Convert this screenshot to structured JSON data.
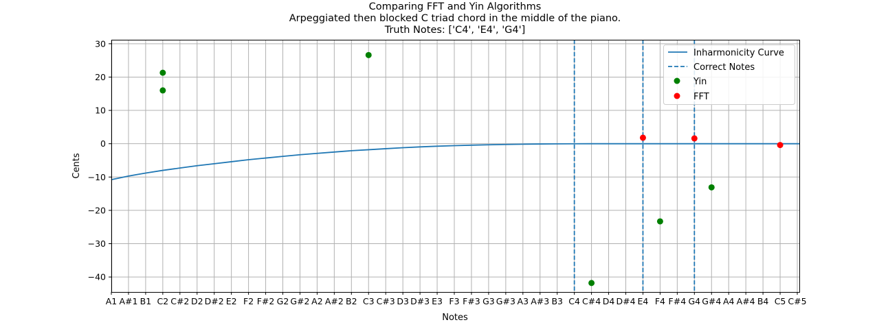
{
  "chart_data": {
    "type": "scatter",
    "title_lines": [
      "Comparing FFT and Yin Algorithms",
      "Arpeggiated then blocked C triad chord in the middle of the piano.",
      "Truth Notes: ['C4', 'E4', 'G4']"
    ],
    "xlabel": "Notes",
    "ylabel": "Cents",
    "x_ticks": [
      "A1",
      "A#1",
      "B1",
      "C2",
      "C#2",
      "D2",
      "D#2",
      "E2",
      "F2",
      "F#2",
      "G2",
      "G#2",
      "A2",
      "A#2",
      "B2",
      "C3",
      "C#3",
      "D3",
      "D#3",
      "E3",
      "F3",
      "F#3",
      "G3",
      "G#3",
      "A3",
      "A#3",
      "B3",
      "C4",
      "C#4",
      "D4",
      "D#4",
      "E4",
      "F4",
      "F#4",
      "G4",
      "G#4",
      "A4",
      "A#4",
      "B4",
      "C5",
      "C#5"
    ],
    "xlim": [
      "A1",
      "C#5"
    ],
    "ylim": [
      -44.5,
      31.2
    ],
    "y_ticks": [
      30,
      20,
      10,
      0,
      -10,
      -20,
      -30,
      -40
    ],
    "y_tick_labels": [
      "30",
      "20",
      "10",
      "0",
      "−10",
      "−20",
      "−30",
      "−40"
    ],
    "grid": true,
    "legend_position": "top-right",
    "colors": {
      "curve": "#1f77b4",
      "correct": "#1f77b4",
      "yin": "#008000",
      "fft": "#ff0000",
      "grid": "#b0b0b0"
    },
    "inharmonicity_curve": {
      "name": "Inharmonicity Curve",
      "x": [
        "A1",
        "A#1",
        "B1",
        "C2",
        "C#2",
        "D2",
        "D#2",
        "E2",
        "F2",
        "F#2",
        "G2",
        "G#2",
        "A2",
        "A#2",
        "B2",
        "C3",
        "C#3",
        "D3",
        "D#3",
        "E3",
        "F3",
        "F#3",
        "G3",
        "G#3",
        "A3",
        "A#3",
        "B3",
        "C4",
        "C#4",
        "D4",
        "D#4",
        "E4",
        "F4",
        "F#4",
        "G4",
        "G#4",
        "A4",
        "A#4",
        "B4",
        "C5",
        "C#5"
      ],
      "y": [
        -10.8,
        -9.7,
        -8.8,
        -8.0,
        -7.3,
        -6.6,
        -6.0,
        -5.4,
        -4.8,
        -4.3,
        -3.8,
        -3.3,
        -2.9,
        -2.5,
        -2.1,
        -1.8,
        -1.5,
        -1.2,
        -0.95,
        -0.75,
        -0.58,
        -0.44,
        -0.32,
        -0.22,
        -0.14,
        -0.08,
        -0.04,
        -0.01,
        0.0,
        0.0,
        0.0,
        0.0,
        0.0,
        0.0,
        0.0,
        0.0,
        0.0,
        0.0,
        0.0,
        0.0,
        0.0
      ]
    },
    "correct_notes": {
      "name": "Correct Notes",
      "x": [
        "C4",
        "E4",
        "G4"
      ]
    },
    "series": [
      {
        "name": "Yin",
        "points": [
          {
            "x": "C2",
            "y": 21.3
          },
          {
            "x": "C2",
            "y": 16.0
          },
          {
            "x": "C3",
            "y": 26.6
          },
          {
            "x": "C#4",
            "y": -41.8
          },
          {
            "x": "F4",
            "y": -23.3
          },
          {
            "x": "G#4",
            "y": -13.1
          }
        ]
      },
      {
        "name": "FFT",
        "points": [
          {
            "x": "E4",
            "y": 1.8
          },
          {
            "x": "G4",
            "y": 1.6
          },
          {
            "x": "C5",
            "y": -0.4
          }
        ]
      }
    ]
  }
}
